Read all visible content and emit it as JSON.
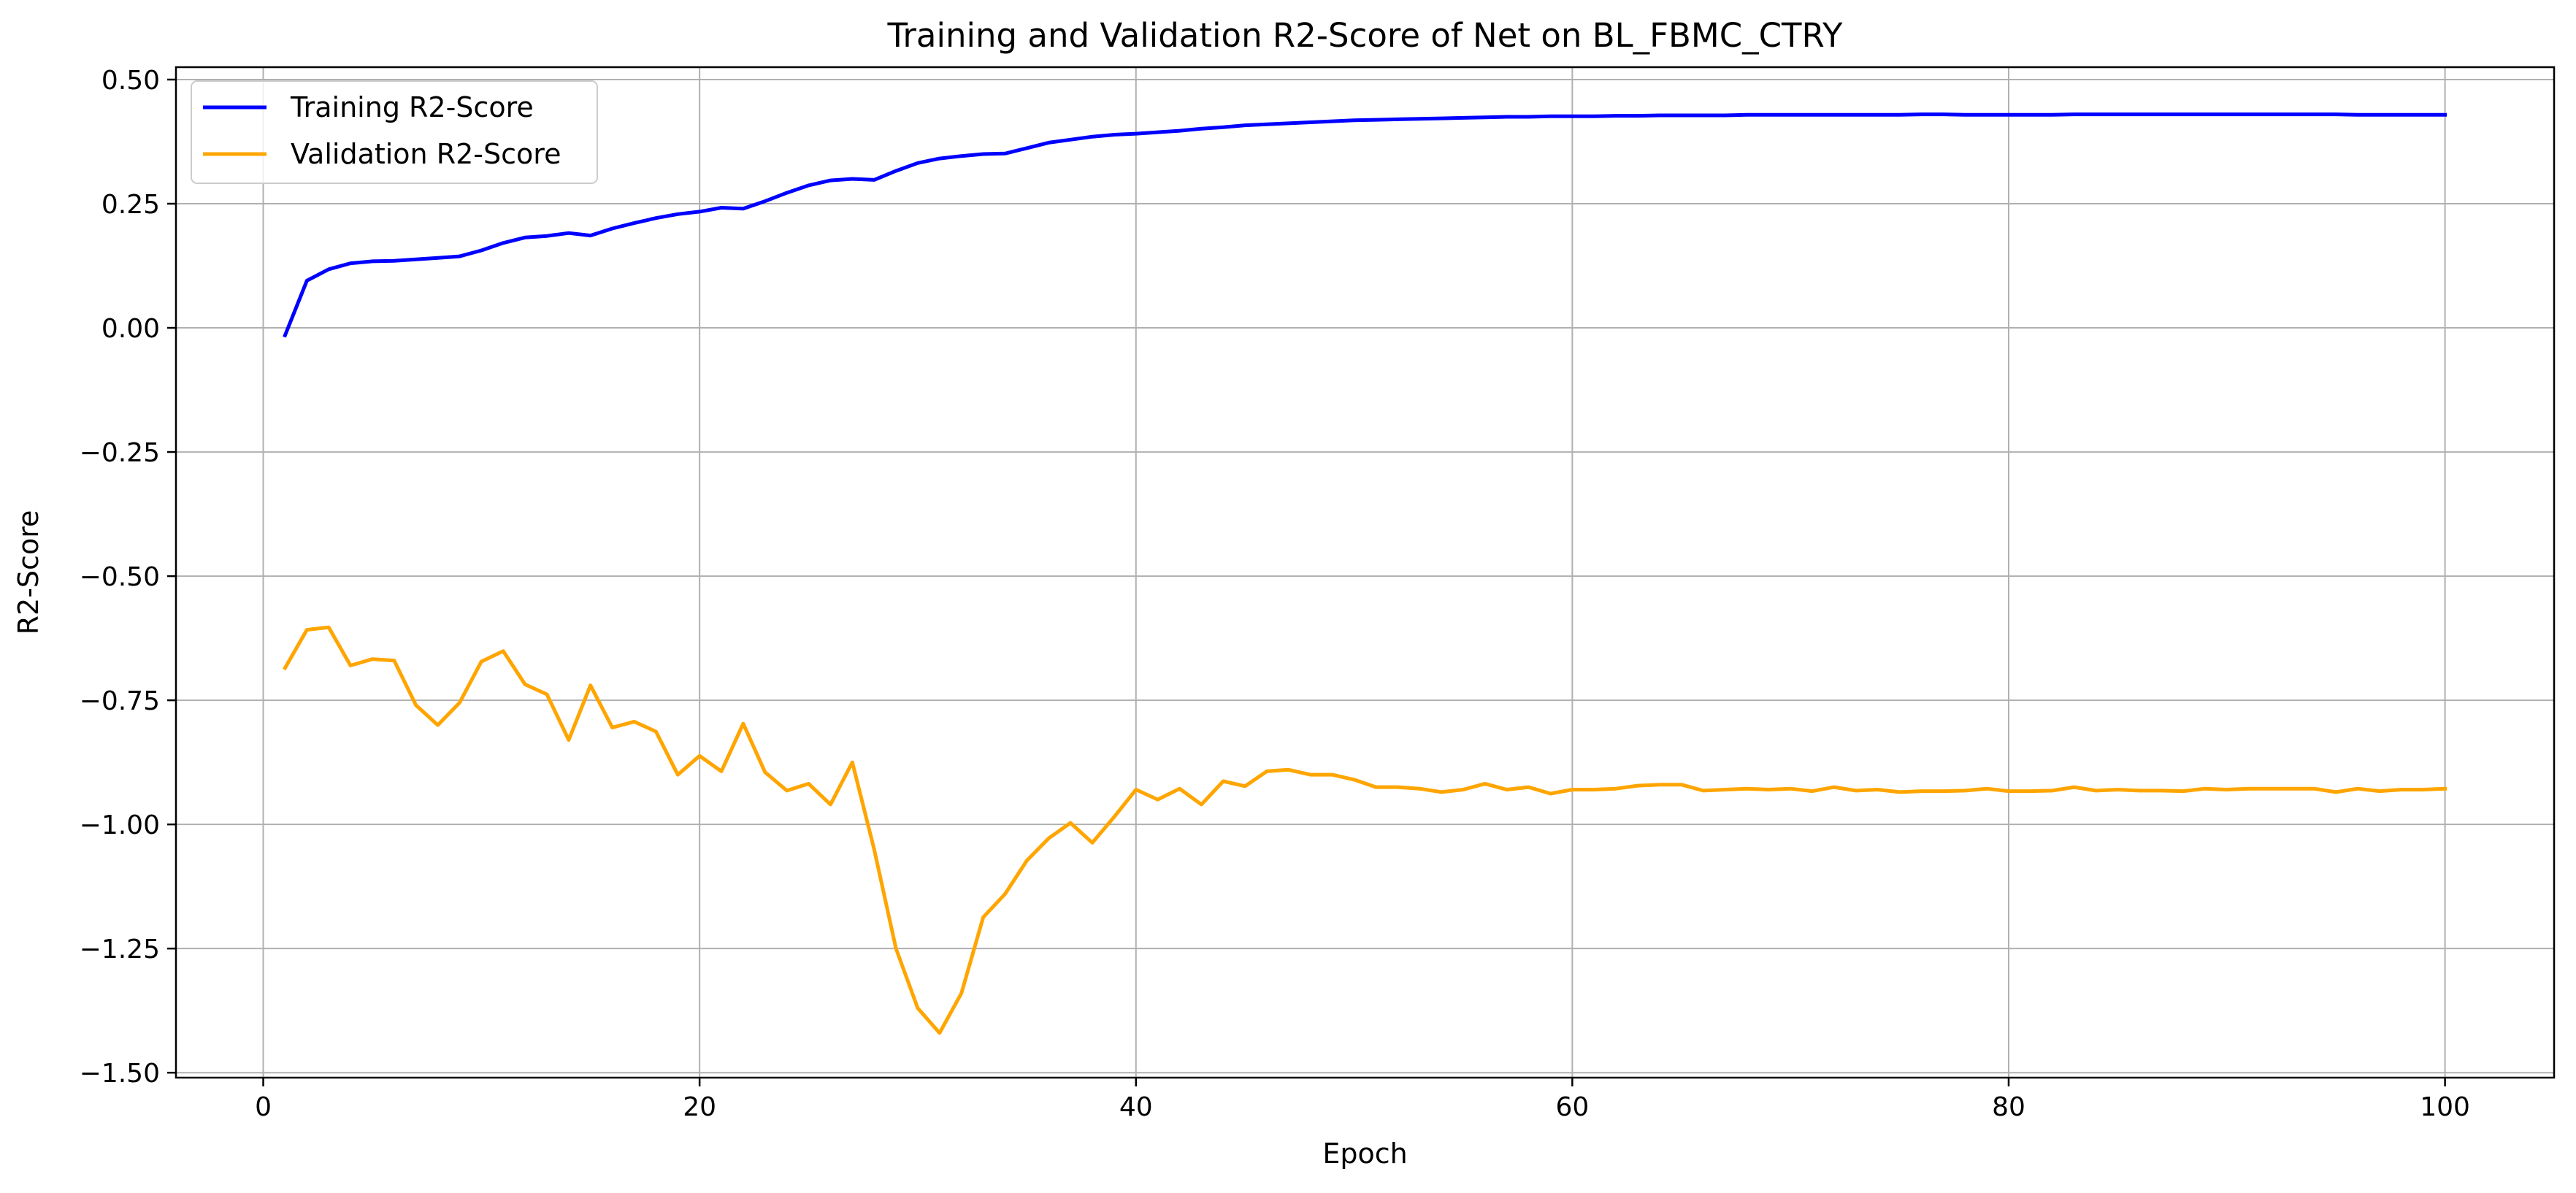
{
  "chart_data": {
    "type": "line",
    "title": "Training and Validation R2-Score of Net on BL_FBMC_CTRY",
    "xlabel": "Epoch",
    "ylabel": "R2-Score",
    "xlim": [
      -4,
      105
    ],
    "ylim": [
      -1.51,
      0.525
    ],
    "x_ticks": [
      0,
      20,
      40,
      60,
      80,
      100
    ],
    "x_tick_labels": [
      "0",
      "20",
      "40",
      "60",
      "80",
      "100"
    ],
    "y_ticks": [
      0.5,
      0.25,
      0.0,
      -0.25,
      -0.5,
      -0.75,
      -1.0,
      -1.25,
      -1.5
    ],
    "y_tick_labels": [
      "0.50",
      "0.25",
      "0.00",
      "−0.25",
      "−0.50",
      "−0.75",
      "−1.00",
      "−1.25",
      "−1.50"
    ],
    "grid": true,
    "legend_position": "upper-left",
    "x": [
      1,
      2,
      3,
      4,
      5,
      6,
      7,
      8,
      9,
      10,
      11,
      12,
      13,
      14,
      15,
      16,
      17,
      18,
      19,
      20,
      21,
      22,
      23,
      24,
      25,
      26,
      27,
      28,
      29,
      30,
      31,
      32,
      33,
      34,
      35,
      36,
      37,
      38,
      39,
      40,
      41,
      42,
      43,
      44,
      45,
      46,
      47,
      48,
      49,
      50,
      51,
      52,
      53,
      54,
      55,
      56,
      57,
      58,
      59,
      60,
      61,
      62,
      63,
      64,
      65,
      66,
      67,
      68,
      69,
      70,
      71,
      72,
      73,
      74,
      75,
      76,
      77,
      78,
      79,
      80,
      81,
      82,
      83,
      84,
      85,
      86,
      87,
      88,
      89,
      90,
      91,
      92,
      93,
      94,
      95,
      96,
      97,
      98,
      99,
      100
    ],
    "series": [
      {
        "name": "Training R2-Score",
        "color": "#0000ff",
        "values": [
          -0.015,
          0.095,
          0.118,
          0.13,
          0.134,
          0.135,
          0.138,
          0.141,
          0.144,
          0.156,
          0.171,
          0.182,
          0.185,
          0.191,
          0.186,
          0.2,
          0.211,
          0.221,
          0.229,
          0.234,
          0.242,
          0.24,
          0.255,
          0.272,
          0.287,
          0.297,
          0.3,
          0.298,
          0.316,
          0.332,
          0.341,
          0.346,
          0.35,
          0.351,
          0.362,
          0.373,
          0.379,
          0.385,
          0.389,
          0.391,
          0.394,
          0.397,
          0.401,
          0.404,
          0.408,
          0.41,
          0.412,
          0.414,
          0.416,
          0.418,
          0.419,
          0.42,
          0.421,
          0.422,
          0.423,
          0.424,
          0.425,
          0.425,
          0.426,
          0.426,
          0.426,
          0.427,
          0.427,
          0.428,
          0.428,
          0.428,
          0.428,
          0.429,
          0.429,
          0.429,
          0.429,
          0.429,
          0.429,
          0.429,
          0.429,
          0.43,
          0.43,
          0.429,
          0.429,
          0.429,
          0.429,
          0.429,
          0.43,
          0.43,
          0.43,
          0.43,
          0.43,
          0.43,
          0.43,
          0.43,
          0.43,
          0.43,
          0.43,
          0.43,
          0.43,
          0.429,
          0.429,
          0.429,
          0.429,
          0.429
        ]
      },
      {
        "name": "Validation R2-Score",
        "color": "#ffa500",
        "values": [
          -0.685,
          -0.608,
          -0.603,
          -0.68,
          -0.667,
          -0.67,
          -0.76,
          -0.8,
          -0.755,
          -0.672,
          -0.651,
          -0.718,
          -0.738,
          -0.83,
          -0.72,
          -0.805,
          -0.793,
          -0.813,
          -0.9,
          -0.862,
          -0.893,
          -0.797,
          -0.895,
          -0.932,
          -0.918,
          -0.96,
          -0.875,
          -1.05,
          -1.25,
          -1.37,
          -1.42,
          -1.34,
          -1.187,
          -1.14,
          -1.073,
          -1.028,
          -0.997,
          -1.037,
          -0.985,
          -0.93,
          -0.95,
          -0.928,
          -0.96,
          -0.913,
          -0.923,
          -0.893,
          -0.89,
          -0.9,
          -0.9,
          -0.91,
          -0.925,
          -0.925,
          -0.928,
          -0.935,
          -0.93,
          -0.918,
          -0.93,
          -0.925,
          -0.938,
          -0.93,
          -0.93,
          -0.928,
          -0.922,
          -0.92,
          -0.92,
          -0.932,
          -0.93,
          -0.928,
          -0.93,
          -0.928,
          -0.933,
          -0.925,
          -0.932,
          -0.93,
          -0.935,
          -0.933,
          -0.933,
          -0.932,
          -0.928,
          -0.933,
          -0.933,
          -0.932,
          -0.925,
          -0.932,
          -0.93,
          -0.932,
          -0.932,
          -0.933,
          -0.928,
          -0.93,
          -0.928,
          -0.928,
          -0.928,
          -0.928,
          -0.935,
          -0.928,
          -0.933,
          -0.93,
          -0.93,
          -0.928
        ]
      }
    ]
  }
}
